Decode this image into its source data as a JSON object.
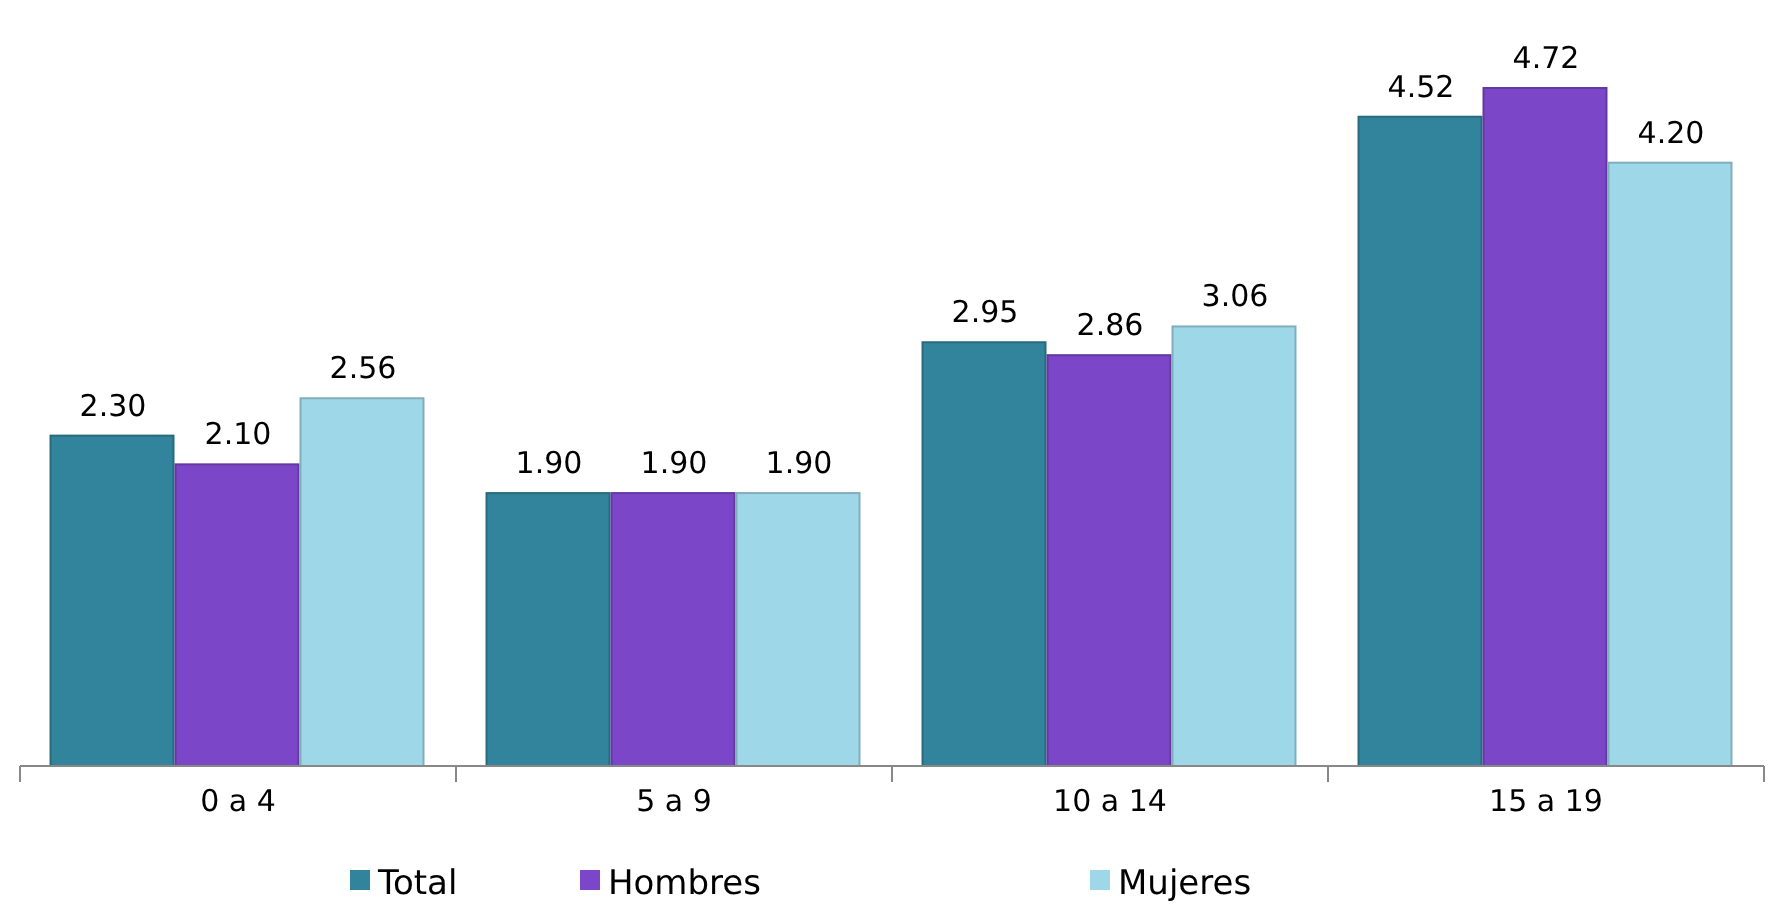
{
  "chart_data": {
    "type": "bar",
    "categories": [
      "0 a 4",
      "5 a 9",
      "10 a 14",
      "15 a 19"
    ],
    "series": [
      {
        "name": "Total",
        "color": "#31849b",
        "values": [
          2.3,
          1.9,
          2.95,
          4.52
        ],
        "value_labels": [
          "2.30",
          "1.90",
          "2.95",
          "4.52"
        ]
      },
      {
        "name": "Hombres",
        "color": "#7b46c8",
        "values": [
          2.1,
          1.9,
          2.86,
          4.72
        ],
        "value_labels": [
          "2.10",
          "1.90",
          "2.86",
          "4.72"
        ]
      },
      {
        "name": "Mujeres",
        "color": "#9ed8e8",
        "values": [
          2.56,
          1.9,
          3.06,
          4.2
        ],
        "value_labels": [
          "2.56",
          "1.90",
          "3.06",
          "4.20"
        ]
      }
    ],
    "legend": "bottom"
  }
}
